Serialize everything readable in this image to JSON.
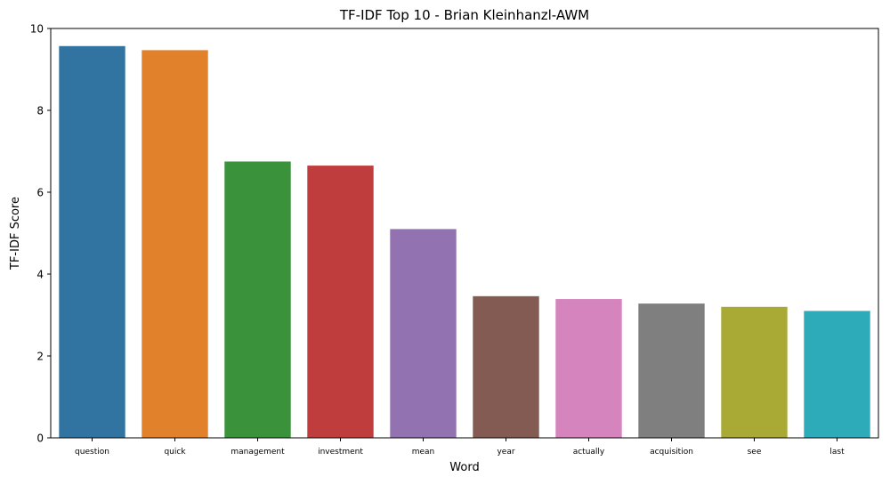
{
  "chart_data": {
    "type": "bar",
    "title": "TF-IDF Top 10 - Brian Kleinhanzl-AWM",
    "xlabel": "Word",
    "ylabel": "TF-IDF Score",
    "categories": [
      "question",
      "quick",
      "management",
      "investment",
      "mean",
      "year",
      "actually",
      "acquisition",
      "see",
      "last"
    ],
    "values": [
      9.57,
      9.47,
      6.75,
      6.65,
      5.1,
      3.46,
      3.39,
      3.28,
      3.2,
      3.1
    ],
    "colors": [
      "#3274a1",
      "#e1812c",
      "#3a923a",
      "#c03d3e",
      "#9372b2",
      "#845b53",
      "#d684bd",
      "#7f7f7f",
      "#a9aa35",
      "#2eabb8"
    ],
    "ylim": [
      0,
      10
    ],
    "yticks": [
      0,
      2,
      4,
      6,
      8,
      10
    ],
    "grid": false,
    "legend": "none"
  }
}
